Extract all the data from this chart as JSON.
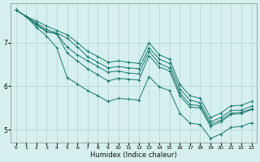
{
  "xlabel": "Humidex (Indice chaleur)",
  "background_color": "#d6efef",
  "grid_color": "#b8d8d8",
  "line_color": "#1a7a6e",
  "xlim": [
    -0.5,
    23.5
  ],
  "ylim": [
    4.7,
    7.9
  ],
  "yticks": [
    5,
    6,
    7
  ],
  "xticks": [
    0,
    1,
    2,
    3,
    4,
    5,
    6,
    7,
    8,
    9,
    10,
    11,
    12,
    13,
    14,
    15,
    16,
    17,
    18,
    19,
    20,
    21,
    22,
    23
  ],
  "series": [
    [
      7.75,
      7.6,
      7.4,
      7.25,
      7.2,
      6.9,
      6.72,
      6.58,
      6.45,
      6.32,
      6.35,
      6.3,
      6.28,
      6.8,
      6.52,
      6.42,
      5.85,
      5.58,
      5.55,
      5.12,
      5.22,
      5.38,
      5.4,
      5.48
    ],
    [
      7.75,
      7.6,
      7.42,
      7.26,
      7.2,
      6.76,
      6.58,
      6.4,
      6.26,
      6.12,
      6.18,
      6.16,
      6.14,
      6.7,
      6.44,
      6.35,
      5.78,
      5.52,
      5.5,
      5.08,
      5.18,
      5.35,
      5.37,
      5.46
    ],
    [
      7.75,
      7.6,
      7.35,
      7.15,
      6.88,
      6.2,
      6.05,
      5.9,
      5.78,
      5.65,
      5.72,
      5.7,
      5.68,
      6.22,
      5.98,
      5.9,
      5.38,
      5.15,
      5.12,
      4.8,
      4.9,
      5.05,
      5.08,
      5.16
    ],
    [
      7.75,
      7.6,
      7.45,
      7.3,
      7.22,
      7.1,
      6.9,
      6.68,
      6.55,
      6.42,
      6.45,
      6.42,
      6.4,
      6.88,
      6.62,
      6.52,
      5.94,
      5.68,
      5.62,
      5.18,
      5.28,
      5.44,
      5.45,
      5.54
    ],
    [
      7.75,
      7.6,
      7.5,
      7.38,
      7.28,
      7.18,
      7.0,
      6.8,
      6.68,
      6.55,
      6.58,
      6.55,
      6.52,
      7.0,
      6.72,
      6.62,
      6.04,
      5.78,
      5.72,
      5.28,
      5.38,
      5.55,
      5.56,
      5.65
    ]
  ]
}
